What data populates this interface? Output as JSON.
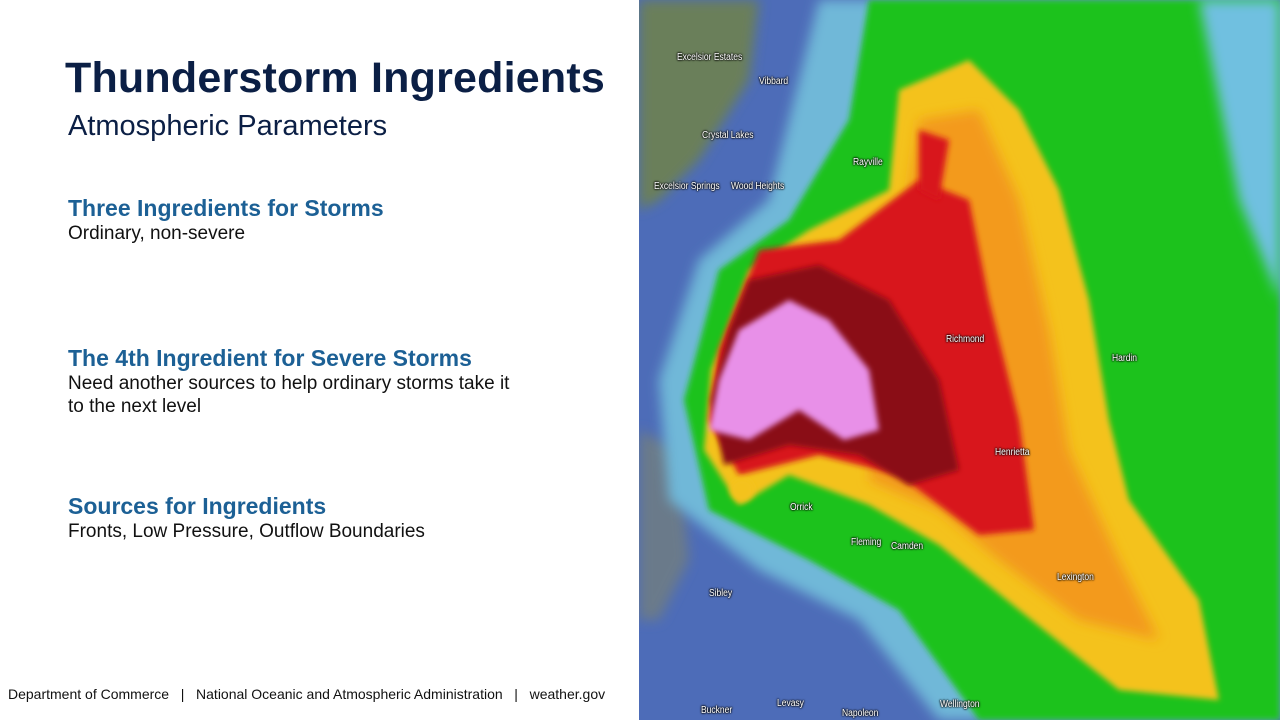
{
  "slide": {
    "title": "Thunderstorm Ingredients",
    "subtitle": "Atmospheric Parameters",
    "sections": [
      {
        "heading": "Three Ingredients for Storms",
        "body": "Ordinary, non-severe"
      },
      {
        "heading": "The 4th Ingredient for Severe Storms",
        "body": "Need another sources to help ordinary storms take it to the next level"
      },
      {
        "heading": "Sources for Ingredients",
        "body": "Fronts, Low Pressure, Outflow Boundaries"
      }
    ],
    "footer": "Department of Commerce   |   National Oceanic and Atmospheric Administration   |   weather.gov"
  },
  "radar": {
    "towns": [
      "Excelsior Estates",
      "Vibbard",
      "Crystal Lakes",
      "Rayville",
      "Excelsior Springs",
      "Wood Heights",
      "Richmond",
      "Hardin",
      "Henrietta",
      "Orrick",
      "Fleming",
      "Camden",
      "Lexington",
      "Sibley",
      "Buckner",
      "Levasy",
      "Napoleon",
      "Wellington"
    ],
    "colors": {
      "background": "#4d6cb8",
      "light": "#6fb8d8",
      "green": "#1fc21f",
      "yellow": "#f4d21a",
      "orange": "#f39a1a",
      "red": "#d8151a",
      "dark_red": "#8a0a14",
      "pink": "#e890e8"
    }
  }
}
